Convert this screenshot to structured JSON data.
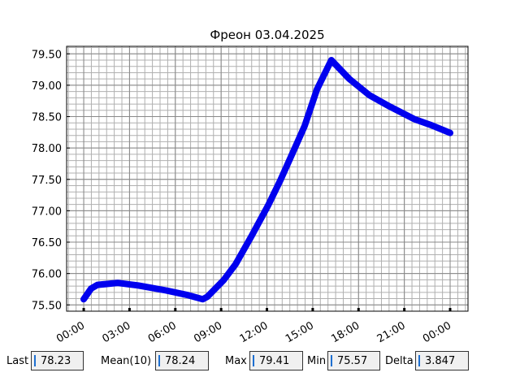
{
  "chart_data": {
    "type": "line",
    "title": "Фреон 03.04.2025",
    "x": [
      0,
      0.48,
      0.9,
      2.23,
      3.56,
      5.4,
      6.75,
      7.8,
      8.1,
      9.15,
      9.95,
      11.0,
      12.07,
      12.87,
      13.83,
      14.47,
      15.27,
      16.22,
      17.4,
      18.72,
      20.05,
      21.65,
      22.7,
      24
    ],
    "series": [
      {
        "name": "Фреон",
        "color": "#0000ee",
        "values": [
          75.59,
          75.76,
          75.82,
          75.85,
          75.81,
          75.73,
          75.66,
          75.59,
          75.63,
          75.89,
          76.15,
          76.6,
          77.08,
          77.48,
          78.0,
          78.35,
          78.93,
          79.4,
          79.1,
          78.84,
          78.66,
          78.46,
          78.37,
          78.24
        ]
      }
    ],
    "xlim": [
      -1.12,
      25.17
    ],
    "xticks": [
      {
        "value": 0,
        "label": "00:00"
      },
      {
        "value": 3,
        "label": "03:00"
      },
      {
        "value": 6,
        "label": "06:00"
      },
      {
        "value": 9,
        "label": "09:00"
      },
      {
        "value": 12,
        "label": "12:00"
      },
      {
        "value": 15,
        "label": "15:00"
      },
      {
        "value": 18,
        "label": "18:00"
      },
      {
        "value": 21,
        "label": "21:00"
      },
      {
        "value": 24,
        "label": "00:00"
      }
    ],
    "ylim": [
      75.4,
      79.62
    ],
    "yticks": [
      {
        "value": 75.5,
        "label": "75.50"
      },
      {
        "value": 76,
        "label": "76.00"
      },
      {
        "value": 76.5,
        "label": "76.50"
      },
      {
        "value": 77,
        "label": "77.00"
      },
      {
        "value": 77.5,
        "label": "77.50"
      },
      {
        "value": 78,
        "label": "78.00"
      },
      {
        "value": 78.5,
        "label": "78.50"
      },
      {
        "value": 79,
        "label": "79.00"
      },
      {
        "value": 79.5,
        "label": "79.50"
      }
    ],
    "grid": true
  },
  "stats": [
    {
      "label": "Last",
      "value": "78.23"
    },
    {
      "label": "Mean(10)",
      "value": "78.24"
    },
    {
      "label": "Max",
      "value": "79.41"
    },
    {
      "label": "Min",
      "value": "75.57"
    },
    {
      "label": "Delta",
      "value": "3.847"
    }
  ]
}
